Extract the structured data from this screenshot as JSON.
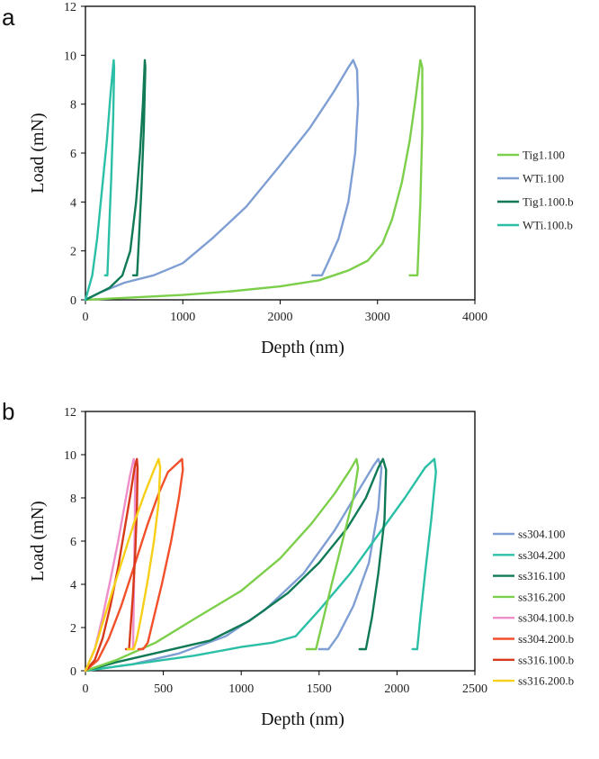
{
  "chart_data": [
    {
      "type": "line",
      "panel_label": "a",
      "xlabel": "Depth (nm)",
      "ylabel": "Load (mN)",
      "xlim": [
        0,
        4000
      ],
      "ylim": [
        0,
        12
      ],
      "xticks": [
        "0",
        "1000",
        "2000",
        "3000",
        "4000"
      ],
      "yticks": [
        "0",
        "2",
        "4",
        "6",
        "8",
        "10",
        "12"
      ],
      "legend_position": "right",
      "series": [
        {
          "name": "Tig1.100",
          "color": "#7ccf4a",
          "points": [
            [
              0,
              0
            ],
            [
              500,
              0.1
            ],
            [
              1000,
              0.2
            ],
            [
              1500,
              0.35
            ],
            [
              2000,
              0.55
            ],
            [
              2400,
              0.8
            ],
            [
              2700,
              1.2
            ],
            [
              2900,
              1.6
            ],
            [
              3050,
              2.3
            ],
            [
              3150,
              3.3
            ],
            [
              3250,
              4.8
            ],
            [
              3330,
              6.5
            ],
            [
              3390,
              8.2
            ],
            [
              3440,
              9.8
            ],
            [
              3460,
              9.5
            ],
            [
              3460,
              7.0
            ],
            [
              3440,
              4.0
            ],
            [
              3420,
              2.0
            ],
            [
              3410,
              1.0
            ],
            [
              3330,
              1.0
            ]
          ]
        },
        {
          "name": "WTi.100",
          "color": "#7f9fd4",
          "points": [
            [
              0,
              0
            ],
            [
              150,
              0.3
            ],
            [
              400,
              0.7
            ],
            [
              700,
              1.0
            ],
            [
              1000,
              1.5
            ],
            [
              1300,
              2.5
            ],
            [
              1650,
              3.8
            ],
            [
              2000,
              5.5
            ],
            [
              2300,
              7.0
            ],
            [
              2550,
              8.5
            ],
            [
              2700,
              9.5
            ],
            [
              2750,
              9.8
            ],
            [
              2790,
              9.4
            ],
            [
              2800,
              8.0
            ],
            [
              2770,
              6.0
            ],
            [
              2700,
              4.0
            ],
            [
              2600,
              2.5
            ],
            [
              2500,
              1.6
            ],
            [
              2430,
              1.0
            ],
            [
              2330,
              1.0
            ]
          ]
        },
        {
          "name": "Tig1.100.b",
          "color": "#0f7a55",
          "points": [
            [
              0,
              0
            ],
            [
              100,
              0.2
            ],
            [
              250,
              0.5
            ],
            [
              380,
              1.0
            ],
            [
              460,
              2.0
            ],
            [
              520,
              4.0
            ],
            [
              560,
              6.0
            ],
            [
              590,
              8.0
            ],
            [
              610,
              9.8
            ],
            [
              615,
              9.5
            ],
            [
              600,
              7.0
            ],
            [
              575,
              4.5
            ],
            [
              550,
              2.5
            ],
            [
              530,
              1.0
            ],
            [
              490,
              1.0
            ]
          ]
        },
        {
          "name": "WTi.100.b",
          "color": "#2bc0a6",
          "points": [
            [
              0,
              0
            ],
            [
              70,
              1.0
            ],
            [
              120,
              2.5
            ],
            [
              170,
              4.5
            ],
            [
              220,
              6.5
            ],
            [
              260,
              8.5
            ],
            [
              290,
              9.8
            ],
            [
              295,
              9.5
            ],
            [
              285,
              7.5
            ],
            [
              265,
              5.0
            ],
            [
              245,
              3.0
            ],
            [
              225,
              1.0
            ],
            [
              200,
              1.0
            ]
          ]
        }
      ]
    },
    {
      "type": "line",
      "panel_label": "b",
      "xlabel": "Depth (nm)",
      "ylabel": "Load (mN)",
      "xlim": [
        0,
        2500
      ],
      "ylim": [
        0,
        12
      ],
      "xticks": [
        "0",
        "500",
        "1000",
        "1500",
        "2000",
        "2500"
      ],
      "yticks": [
        "0",
        "2",
        "4",
        "6",
        "8",
        "10",
        "12"
      ],
      "legend_position": "right",
      "series": [
        {
          "name": "ss304.100",
          "color": "#7f9fd4",
          "points": [
            [
              0,
              0
            ],
            [
              300,
              0.3
            ],
            [
              600,
              0.8
            ],
            [
              900,
              1.6
            ],
            [
              1150,
              2.8
            ],
            [
              1400,
              4.5
            ],
            [
              1600,
              6.5
            ],
            [
              1750,
              8.3
            ],
            [
              1850,
              9.5
            ],
            [
              1880,
              9.8
            ],
            [
              1900,
              9.4
            ],
            [
              1880,
              7.5
            ],
            [
              1820,
              5.0
            ],
            [
              1720,
              3.0
            ],
            [
              1620,
              1.6
            ],
            [
              1560,
              1.0
            ],
            [
              1500,
              1.0
            ]
          ]
        },
        {
          "name": "ss304.200",
          "color": "#2bc0a6",
          "points": [
            [
              0,
              0
            ],
            [
              400,
              0.4
            ],
            [
              700,
              0.7
            ],
            [
              1000,
              1.1
            ],
            [
              1200,
              1.3
            ],
            [
              1350,
              1.6
            ],
            [
              1500,
              2.8
            ],
            [
              1700,
              4.5
            ],
            [
              1900,
              6.5
            ],
            [
              2050,
              8.0
            ],
            [
              2180,
              9.4
            ],
            [
              2240,
              9.8
            ],
            [
              2250,
              9.2
            ],
            [
              2220,
              7.0
            ],
            [
              2180,
              4.5
            ],
            [
              2150,
              2.5
            ],
            [
              2130,
              1.0
            ],
            [
              2100,
              1.0
            ]
          ]
        },
        {
          "name": "ss316.100",
          "color": "#0f7a55",
          "points": [
            [
              0,
              0
            ],
            [
              200,
              0.4
            ],
            [
              500,
              0.9
            ],
            [
              800,
              1.4
            ],
            [
              1050,
              2.3
            ],
            [
              1300,
              3.6
            ],
            [
              1500,
              5.0
            ],
            [
              1680,
              6.6
            ],
            [
              1800,
              8.0
            ],
            [
              1880,
              9.4
            ],
            [
              1910,
              9.8
            ],
            [
              1930,
              9.3
            ],
            [
              1920,
              7.0
            ],
            [
              1880,
              4.5
            ],
            [
              1840,
              2.5
            ],
            [
              1800,
              1.0
            ],
            [
              1760,
              1.0
            ]
          ]
        },
        {
          "name": "ss316.200",
          "color": "#7ccf4a",
          "points": [
            [
              0,
              0
            ],
            [
              200,
              0.5
            ],
            [
              450,
              1.3
            ],
            [
              700,
              2.4
            ],
            [
              1000,
              3.7
            ],
            [
              1250,
              5.2
            ],
            [
              1450,
              6.8
            ],
            [
              1600,
              8.2
            ],
            [
              1700,
              9.3
            ],
            [
              1740,
              9.8
            ],
            [
              1750,
              9.4
            ],
            [
              1720,
              8.0
            ],
            [
              1650,
              6.0
            ],
            [
              1580,
              4.0
            ],
            [
              1520,
              2.2
            ],
            [
              1480,
              1.0
            ],
            [
              1420,
              1.0
            ]
          ]
        },
        {
          "name": "ss304.100.b",
          "color": "#ef8ec9",
          "points": [
            [
              0,
              0
            ],
            [
              60,
              1.0
            ],
            [
              110,
              2.5
            ],
            [
              160,
              4.2
            ],
            [
              210,
              6.0
            ],
            [
              250,
              7.6
            ],
            [
              285,
              9.0
            ],
            [
              310,
              9.8
            ],
            [
              320,
              9.4
            ],
            [
              318,
              8.0
            ],
            [
              315,
              6.0
            ],
            [
              312,
              4.0
            ],
            [
              308,
              2.0
            ],
            [
              305,
              1.0
            ],
            [
              290,
              1.0
            ]
          ]
        },
        {
          "name": "ss304.200.b",
          "color": "#f2502a",
          "points": [
            [
              0,
              0
            ],
            [
              80,
              0.5
            ],
            [
              150,
              1.5
            ],
            [
              230,
              3.0
            ],
            [
              320,
              5.0
            ],
            [
              400,
              6.8
            ],
            [
              470,
              8.2
            ],
            [
              530,
              9.2
            ],
            [
              590,
              9.6
            ],
            [
              620,
              9.8
            ],
            [
              625,
              9.3
            ],
            [
              600,
              8.0
            ],
            [
              550,
              6.0
            ],
            [
              490,
              4.0
            ],
            [
              440,
              2.5
            ],
            [
              400,
              1.3
            ],
            [
              370,
              1.0
            ],
            [
              340,
              1.0
            ]
          ]
        },
        {
          "name": "ss316.100.b",
          "color": "#d73a1a",
          "points": [
            [
              0,
              0
            ],
            [
              60,
              0.5
            ],
            [
              110,
              1.5
            ],
            [
              160,
              3.0
            ],
            [
              210,
              4.8
            ],
            [
              250,
              6.5
            ],
            [
              290,
              8.2
            ],
            [
              315,
              9.4
            ],
            [
              330,
              9.8
            ],
            [
              335,
              9.4
            ],
            [
              330,
              7.5
            ],
            [
              320,
              5.5
            ],
            [
              305,
              3.5
            ],
            [
              290,
              2.0
            ],
            [
              280,
              1.0
            ],
            [
              260,
              1.0
            ]
          ]
        },
        {
          "name": "ss316.200.b",
          "color": "#f7cf17",
          "points": [
            [
              0,
              0
            ],
            [
              60,
              1.0
            ],
            [
              110,
              2.2
            ],
            [
              170,
              3.6
            ],
            [
              240,
              5.2
            ],
            [
              310,
              6.8
            ],
            [
              380,
              8.2
            ],
            [
              440,
              9.3
            ],
            [
              470,
              9.8
            ],
            [
              480,
              9.4
            ],
            [
              470,
              7.8
            ],
            [
              440,
              6.0
            ],
            [
              400,
              4.2
            ],
            [
              360,
              2.6
            ],
            [
              330,
              1.5
            ],
            [
              310,
              1.0
            ],
            [
              270,
              1.0
            ]
          ]
        }
      ]
    }
  ]
}
